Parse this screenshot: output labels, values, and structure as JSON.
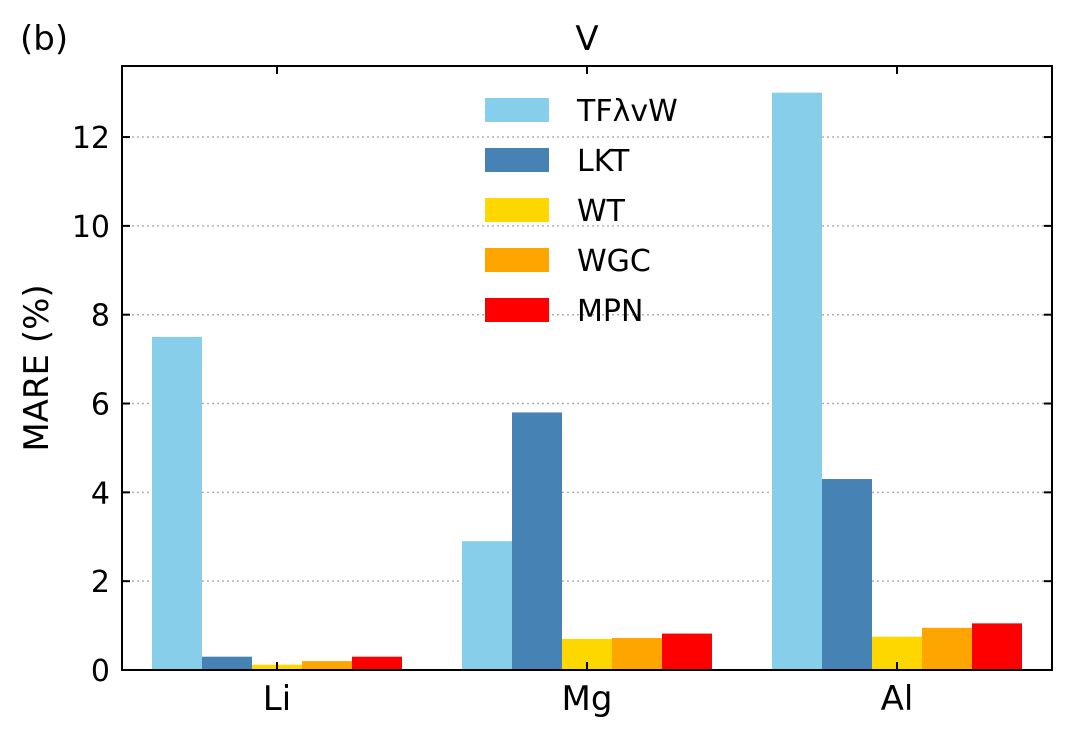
{
  "panel_label": "(b)",
  "chart_data": {
    "type": "bar",
    "title": "V",
    "xlabel": "",
    "ylabel": "MARE (%)",
    "categories": [
      "Li",
      "Mg",
      "Al"
    ],
    "ylim": [
      0,
      13.6
    ],
    "yticks": [
      0,
      2,
      4,
      6,
      8,
      10,
      12
    ],
    "grid": "horizontal dotted",
    "legend_position": "top-center",
    "series": [
      {
        "name": "TFλvW",
        "color": "#87CEEB",
        "values": [
          7.5,
          2.9,
          13.0
        ]
      },
      {
        "name": "LKT",
        "color": "#4682B4",
        "values": [
          0.3,
          5.8,
          4.3
        ]
      },
      {
        "name": "WT",
        "color": "#FFD700",
        "values": [
          0.12,
          0.7,
          0.75
        ]
      },
      {
        "name": "WGC",
        "color": "#FFA500",
        "values": [
          0.2,
          0.72,
          0.95
        ]
      },
      {
        "name": "MPN",
        "color": "#FF0000",
        "values": [
          0.3,
          0.82,
          1.05
        ]
      }
    ]
  }
}
